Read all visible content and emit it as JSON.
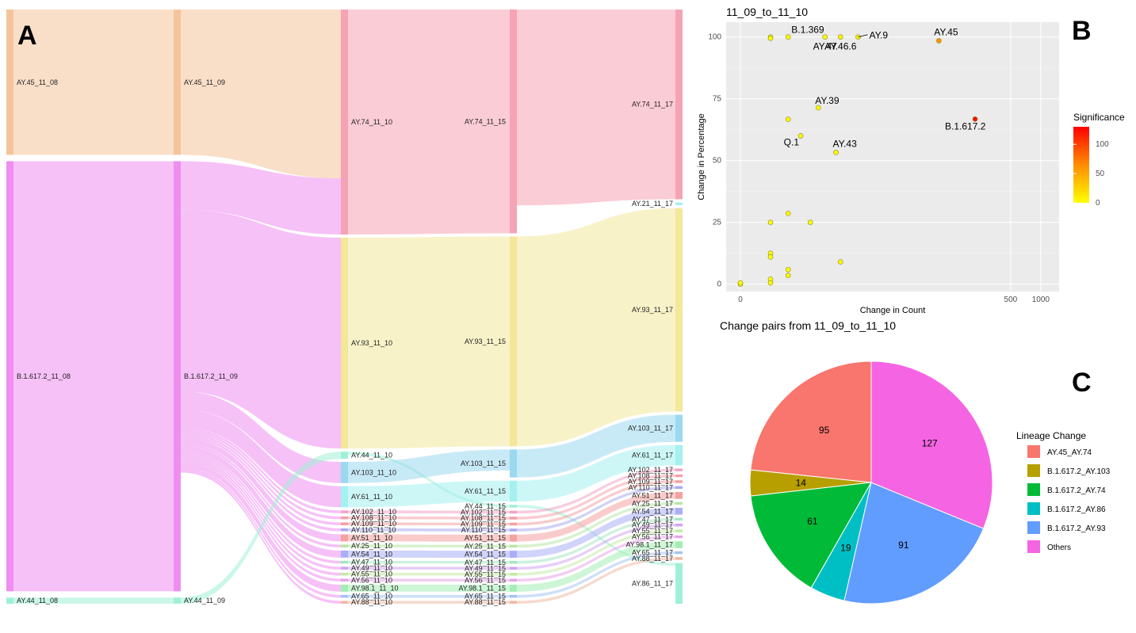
{
  "panels": {
    "a": "A",
    "b": "B",
    "c": "C"
  },
  "chart_data": [
    {
      "type": "sankey",
      "title": "",
      "columns": [
        {
          "nodes": [
            {
              "label": "AY.45_11_08",
              "value": 24,
              "color": "#f6c49b"
            },
            {
              "label": "B.1.617.2_11_08",
              "value": 71,
              "color": "#ef8ef0"
            },
            {
              "label": "AY.44_11_08",
              "value": 1,
              "color": "#9ff0d6"
            }
          ]
        },
        {
          "nodes": [
            {
              "label": "AY.45_11_09",
              "value": 24,
              "color": "#f6c49b"
            },
            {
              "label": "B.1.617.2_11_09",
              "value": 71,
              "color": "#ef8ef0"
            },
            {
              "label": "AY.44_11_09",
              "value": 1,
              "color": "#9ff0d6"
            }
          ]
        },
        {
          "nodes": [
            {
              "label": "AY.74_11_10",
              "value": 32,
              "color": "#f5a3b5"
            },
            {
              "label": "AY.93_11_10",
              "value": 30,
              "color": "#f3e79a"
            },
            {
              "label": "AY.44_11_10",
              "value": 1,
              "color": "#9ff0d6"
            },
            {
              "label": "AY.103_11_10",
              "value": 3,
              "color": "#9ad9ef"
            },
            {
              "label": "AY.61_11_10",
              "value": 3,
              "color": "#a4f1ef"
            },
            {
              "label": "AY.102_11_10",
              "value": 0.4,
              "color": "#f0a2c4"
            },
            {
              "label": "AY.108_11_10",
              "value": 0.4,
              "color": "#f5a0a9"
            },
            {
              "label": "AY.109_11_10",
              "value": 0.4,
              "color": "#f0a0a0"
            },
            {
              "label": "AY.110_11_10",
              "value": 0.4,
              "color": "#a9a9f0"
            },
            {
              "label": "AY.51_11_10",
              "value": 1,
              "color": "#f4a2a0"
            },
            {
              "label": "AY.25_11_10",
              "value": 0.4,
              "color": "#b7e6a4"
            },
            {
              "label": "AY.54_11_10",
              "value": 1,
              "color": "#a9aef5"
            },
            {
              "label": "AY.47_11_10",
              "value": 0.4,
              "color": "#a4e6c4"
            },
            {
              "label": "AY.49_11_10",
              "value": 0.4,
              "color": "#d2a4f0"
            },
            {
              "label": "AY.55_11_10",
              "value": 0.4,
              "color": "#c4eaa4"
            },
            {
              "label": "AY.56_11_10",
              "value": 0.4,
              "color": "#e6a4e8"
            },
            {
              "label": "AY.98.1_11_10",
              "value": 1,
              "color": "#a4eeb4"
            },
            {
              "label": "AY.65_11_10",
              "value": 0.4,
              "color": "#a4c4f0"
            },
            {
              "label": "AY.88_11_10",
              "value": 0.4,
              "color": "#f0b8a4"
            }
          ]
        },
        {
          "nodes": [
            {
              "label": "AY.74_11_15",
              "value": 32,
              "color": "#f5a3b5"
            },
            {
              "label": "AY.93_11_15",
              "value": 30,
              "color": "#f3e79a"
            },
            {
              "label": "AY.103_11_15",
              "value": 4,
              "color": "#9ad9ef"
            },
            {
              "label": "AY.61_11_15",
              "value": 3,
              "color": "#a4f1ef"
            },
            {
              "label": "AY.44_11_15",
              "value": 0.4,
              "color": "#9ff0d6"
            },
            {
              "label": "AY.102_11_15",
              "value": 0.4,
              "color": "#f0a2c4"
            },
            {
              "label": "AY.108_11_15",
              "value": 0.4,
              "color": "#f5a0a9"
            },
            {
              "label": "AY.109_11_15",
              "value": 0.4,
              "color": "#f0a0a0"
            },
            {
              "label": "AY.110_11_15",
              "value": 0.4,
              "color": "#a9a9f0"
            },
            {
              "label": "AY.51_11_15",
              "value": 1,
              "color": "#f4a2a0"
            },
            {
              "label": "AY.25_11_15",
              "value": 0.4,
              "color": "#b7e6a4"
            },
            {
              "label": "AY.54_11_15",
              "value": 1,
              "color": "#a9aef5"
            },
            {
              "label": "AY.47_11_15",
              "value": 0.4,
              "color": "#a4e6c4"
            },
            {
              "label": "AY.49_11_15",
              "value": 0.4,
              "color": "#d2a4f0"
            },
            {
              "label": "AY.55_11_15",
              "value": 0.4,
              "color": "#c4eaa4"
            },
            {
              "label": "AY.56_11_15",
              "value": 0.4,
              "color": "#e6a4e8"
            },
            {
              "label": "AY.98.1_11_15",
              "value": 1,
              "color": "#a4eeb4"
            },
            {
              "label": "AY.65_11_15",
              "value": 0.4,
              "color": "#a4c4f0"
            },
            {
              "label": "AY.88_11_15",
              "value": 0.4,
              "color": "#f0b8a4"
            }
          ]
        },
        {
          "nodes": [
            {
              "label": "AY.74_11_17",
              "value": 28,
              "color": "#f5a3b5"
            },
            {
              "label": "AY.21_11_17",
              "value": 0.4,
              "color": "#a4f1ef"
            },
            {
              "label": "AY.93_11_17",
              "value": 30,
              "color": "#f3e79a"
            },
            {
              "label": "AY.103_11_17",
              "value": 4,
              "color": "#9ad9ef"
            },
            {
              "label": "AY.61_11_17",
              "value": 3,
              "color": "#a4f1ef"
            },
            {
              "label": "AY.102_11_17",
              "value": 0.4,
              "color": "#f0a2c4"
            },
            {
              "label": "AY.108_11_17",
              "value": 0.4,
              "color": "#f5a0a9"
            },
            {
              "label": "AY.109_11_17",
              "value": 0.4,
              "color": "#f0a0a0"
            },
            {
              "label": "AY.110_11_17",
              "value": 0.4,
              "color": "#a9a9f0"
            },
            {
              "label": "AY.51_11_17",
              "value": 1,
              "color": "#f4a2a0"
            },
            {
              "label": "AY.25_11_17",
              "value": 0.4,
              "color": "#b7e6a4"
            },
            {
              "label": "AY.54_11_17",
              "value": 1,
              "color": "#a9aef5"
            },
            {
              "label": "AY.47_11_17",
              "value": 0.4,
              "color": "#a4e6c4"
            },
            {
              "label": "AY.49_11_17",
              "value": 0.4,
              "color": "#d2a4f0"
            },
            {
              "label": "AY.55_11_17",
              "value": 0.4,
              "color": "#c4eaa4"
            },
            {
              "label": "AY.56_11_17",
              "value": 0.4,
              "color": "#e6a4e8"
            },
            {
              "label": "AY.98.1_11_17",
              "value": 1,
              "color": "#a4eeb4"
            },
            {
              "label": "AY.65_11_17",
              "value": 0.4,
              "color": "#a4c4f0"
            },
            {
              "label": "AY.88_11_17",
              "value": 0.4,
              "color": "#f0b8a4"
            },
            {
              "label": "AY.86_11_17",
              "value": 6,
              "color": "#9ff0d6"
            }
          ]
        }
      ]
    },
    {
      "type": "scatter",
      "title": "11_09_to_11_10",
      "xlabel": "Change in Count",
      "ylabel": "Change in Percentage",
      "xscale": "log",
      "xticks": [
        0,
        500,
        1000
      ],
      "yticks": [
        0,
        25,
        50,
        75,
        100
      ],
      "ylim": [
        -3,
        106
      ],
      "grid": true,
      "legend": {
        "title": "Significance",
        "ticks": [
          0,
          50,
          100
        ],
        "range": [
          0,
          130
        ],
        "colors": [
          "#ffff00",
          "#ff8c00",
          "#ff0000"
        ],
        "placement": "right"
      },
      "points": [
        {
          "x": 0,
          "y": 0,
          "sig": 0,
          "label": ""
        },
        {
          "x": 0,
          "y": 0.5,
          "sig": 0,
          "label": ""
        },
        {
          "x": 1,
          "y": 100,
          "sig": 1,
          "label": ""
        },
        {
          "x": 1,
          "y": 99.5,
          "sig": 1,
          "label": ""
        },
        {
          "x": 1,
          "y": 25,
          "sig": 0,
          "label": ""
        },
        {
          "x": 1,
          "y": 12.5,
          "sig": 0,
          "label": ""
        },
        {
          "x": 1,
          "y": 11,
          "sig": 0,
          "label": ""
        },
        {
          "x": 1,
          "y": 2,
          "sig": 0,
          "label": ""
        },
        {
          "x": 1,
          "y": 0.5,
          "sig": 0,
          "label": ""
        },
        {
          "x": 2,
          "y": 100,
          "sig": 2,
          "label": "B.1.369"
        },
        {
          "x": 2,
          "y": 66.7,
          "sig": 1,
          "label": ""
        },
        {
          "x": 2,
          "y": 28.6,
          "sig": 0,
          "label": ""
        },
        {
          "x": 2,
          "y": 5.9,
          "sig": 0,
          "label": ""
        },
        {
          "x": 2,
          "y": 3.5,
          "sig": 0,
          "label": ""
        },
        {
          "x": 3,
          "y": 60,
          "sig": 2,
          "label": "Q.1"
        },
        {
          "x": 4,
          "y": 25,
          "sig": 0,
          "label": ""
        },
        {
          "x": 5,
          "y": 71.4,
          "sig": 3,
          "label": "AY.39"
        },
        {
          "x": 6,
          "y": 100,
          "sig": 4,
          "label": "AY.47"
        },
        {
          "x": 8,
          "y": 53.3,
          "sig": 4,
          "label": "AY.43"
        },
        {
          "x": 9,
          "y": 100,
          "sig": 6,
          "label": "AY.46.6"
        },
        {
          "x": 9,
          "y": 9,
          "sig": 0,
          "label": ""
        },
        {
          "x": 14,
          "y": 100,
          "sig": 8,
          "label": "AY.9"
        },
        {
          "x": 95,
          "y": 98.5,
          "sig": 60,
          "label": "AY.45"
        },
        {
          "x": 220,
          "y": 66.8,
          "sig": 125,
          "label": "B.1.617.2"
        }
      ]
    },
    {
      "type": "pie",
      "title": "Change pairs from 11_09_to_11_10",
      "legend_title": "Lineage Change",
      "legend_placement": "right",
      "slices": [
        {
          "label": "AY.45_AY.74",
          "value": 95,
          "color": "#f8766d"
        },
        {
          "label": "B.1.617.2_AY.103",
          "value": 14,
          "color": "#b79f00"
        },
        {
          "label": "B.1.617.2_AY.74",
          "value": 61,
          "color": "#00ba38"
        },
        {
          "label": "B.1.617.2_AY.86",
          "value": 19,
          "color": "#00bfc4"
        },
        {
          "label": "B.1.617.2_AY.93",
          "value": 91,
          "color": "#619cff"
        },
        {
          "label": "Others",
          "value": 127,
          "color": "#f564e3"
        }
      ]
    }
  ]
}
